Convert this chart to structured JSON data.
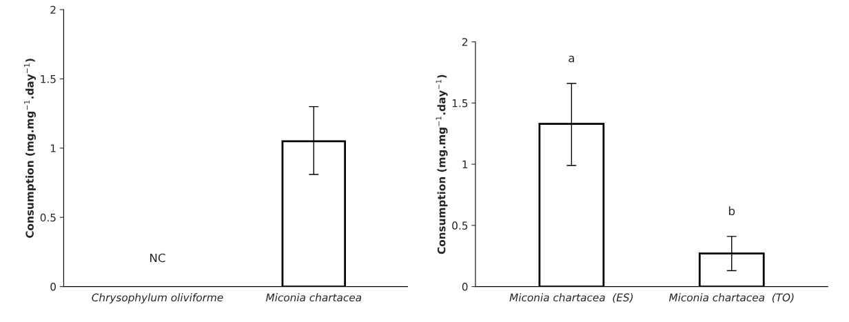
{
  "chart_data": [
    {
      "type": "bar",
      "categories": [
        "Chrysophylum oliviforme",
        "Miconia chartacea"
      ],
      "values": [
        null,
        1.05
      ],
      "errors": [
        null,
        [
          0.81,
          1.3
        ]
      ],
      "color": "#ffffff",
      "ylabel": "Consumption (mg.mg$^{−1}$.day$^{−1}$)",
      "ylim": [
        0,
        2
      ],
      "yticks": [
        0,
        0.5,
        1,
        1.5,
        2
      ],
      "grid": false,
      "annotations": [
        "NC"
      ]
    },
    {
      "type": "bar",
      "categories": [
        "Miconia chartacea  (ES)",
        "Miconia chartacea  (TO)"
      ],
      "values": [
        1.33,
        0.27
      ],
      "errors": [
        [
          0.99,
          1.66
        ],
        [
          0.13,
          0.41
        ]
      ],
      "color": "#ffffff",
      "ylabel": "Consumption (mg.mg$^{−1}$.day$^{−1}$)",
      "ylim": [
        0,
        2
      ],
      "yticks": [
        0,
        0.5,
        1,
        1.5,
        2
      ],
      "grid": false,
      "annotations": [
        "a",
        "b"
      ]
    }
  ]
}
